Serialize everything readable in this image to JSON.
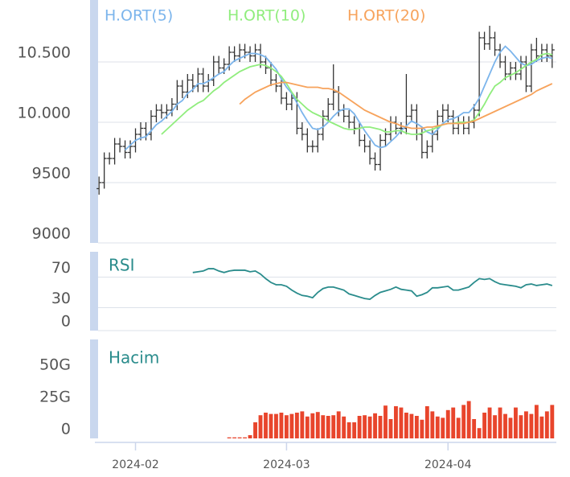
{
  "chart_data": [
    {
      "type": "ohlc",
      "color": "#333333",
      "ylim": [
        9000,
        11000
      ],
      "grid": true,
      "yticks": [
        9000,
        9500,
        {
          "value": 10000,
          "label": "10.000"
        },
        {
          "value": 10500,
          "label": "10.500"
        }
      ],
      "open": [
        9450,
        9500,
        9700,
        9700,
        9820,
        9800,
        9750,
        9800,
        9900,
        9950,
        9900,
        10050,
        10100,
        10080,
        10100,
        10150,
        10300,
        10250,
        10350,
        10300,
        10400,
        10300,
        10350,
        10500,
        10450,
        10480,
        10580,
        10550,
        10600,
        10580,
        10550,
        10600,
        10500,
        10450,
        10350,
        10300,
        10200,
        10150,
        10200,
        9950,
        9900,
        9800,
        9800,
        9900,
        10050,
        10150,
        10250,
        10100,
        10050,
        10000,
        9950,
        9850,
        9800,
        9700,
        9650,
        9850,
        9900,
        10000,
        9950,
        9950,
        10050,
        10100,
        9900,
        9750,
        9800,
        9900,
        10050,
        10100,
        10050,
        9950,
        10000,
        9950,
        10000,
        10100,
        10700,
        10650,
        10700,
        10600,
        10500,
        10400,
        10450,
        10400,
        10500,
        10300,
        10600,
        10550,
        10600,
        10550
      ],
      "high": [
        9550,
        9750,
        9750,
        9870,
        9870,
        9850,
        9850,
        9950,
        10000,
        10000,
        10100,
        10150,
        10150,
        10150,
        10200,
        10350,
        10350,
        10400,
        10400,
        10450,
        10450,
        10400,
        10550,
        10550,
        10530,
        10630,
        10630,
        10650,
        10650,
        10630,
        10650,
        10650,
        10550,
        10500,
        10400,
        10350,
        10250,
        10250,
        10250,
        10000,
        9950,
        9850,
        9950,
        10100,
        10200,
        10480,
        10300,
        10150,
        10100,
        10050,
        10000,
        9900,
        9850,
        9750,
        9900,
        9950,
        10050,
        10050,
        10000,
        10400,
        10150,
        10150,
        9950,
        9850,
        9950,
        10100,
        10150,
        10150,
        10100,
        10050,
        10050,
        10050,
        10150,
        10750,
        10750,
        10800,
        10750,
        10650,
        10550,
        10500,
        10500,
        10550,
        10550,
        10650,
        10700,
        10650,
        10650,
        10650
      ],
      "low": [
        9400,
        9450,
        9650,
        9650,
        9750,
        9700,
        9700,
        9750,
        9850,
        9850,
        9850,
        10000,
        10030,
        10030,
        10050,
        10100,
        10200,
        10200,
        10250,
        10250,
        10250,
        10250,
        10300,
        10400,
        10400,
        10430,
        10500,
        10500,
        10530,
        10500,
        10500,
        10450,
        10400,
        10300,
        10250,
        10150,
        10100,
        10100,
        9900,
        9850,
        9750,
        9750,
        9750,
        9850,
        10000,
        10100,
        10050,
        10000,
        9950,
        9900,
        9800,
        9750,
        9650,
        9600,
        9600,
        9800,
        9850,
        9900,
        9900,
        9900,
        10000,
        9850,
        9700,
        9700,
        9750,
        9850,
        10000,
        10000,
        9900,
        9900,
        9900,
        9900,
        9950,
        10050,
        10600,
        10600,
        10550,
        10450,
        10350,
        10350,
        10350,
        10350,
        10250,
        10250,
        10500,
        10500,
        10500,
        10450
      ],
      "close": [
        9500,
        9700,
        9700,
        9820,
        9800,
        9750,
        9800,
        9900,
        9950,
        9900,
        10050,
        10100,
        10080,
        10100,
        10150,
        10300,
        10250,
        10350,
        10300,
        10400,
        10300,
        10350,
        10500,
        10450,
        10480,
        10580,
        10550,
        10600,
        10580,
        10550,
        10600,
        10500,
        10450,
        10350,
        10300,
        10200,
        10150,
        10200,
        9950,
        9900,
        9800,
        9800,
        9900,
        10050,
        10150,
        10250,
        10100,
        10050,
        10000,
        9950,
        9850,
        9800,
        9700,
        9650,
        9850,
        9900,
        10000,
        9950,
        9950,
        10050,
        10100,
        9900,
        9750,
        9800,
        9900,
        10050,
        10100,
        10050,
        9950,
        10000,
        9950,
        10000,
        10100,
        10700,
        10650,
        10700,
        10600,
        10500,
        10400,
        10450,
        10400,
        10500,
        10300,
        10600,
        10550,
        10600,
        10550,
        10600
      ],
      "series": [
        {
          "name": "H.ORT(5)",
          "color": "#7cb5ec",
          "values": [
            null,
            null,
            null,
            null,
            null,
            9770,
            9810,
            9850,
            9870,
            9880,
            9930,
            9980,
            10010,
            10050,
            10090,
            10150,
            10180,
            10240,
            10270,
            10320,
            10320,
            10340,
            10370,
            10400,
            10420,
            10470,
            10510,
            10530,
            10550,
            10570,
            10570,
            10560,
            10540,
            10490,
            10440,
            10360,
            10290,
            10240,
            10160,
            10080,
            10010,
            9950,
            9940,
            9960,
            10000,
            10050,
            10090,
            10110,
            10110,
            10070,
            10000,
            9930,
            9870,
            9810,
            9790,
            9800,
            9840,
            9880,
            9930,
            9970,
            10010,
            9990,
            9960,
            9920,
            9900,
            9940,
            9990,
            10020,
            10030,
            10050,
            10080,
            10080,
            10130,
            10200,
            10300,
            10400,
            10500,
            10580,
            10630,
            10590,
            10540,
            10490,
            10470,
            10480,
            10510,
            10530,
            10540,
            10530
          ]
        },
        {
          "name": "H.ORT(10)",
          "color": "#90ed7d",
          "values": [
            null,
            null,
            null,
            null,
            null,
            null,
            null,
            null,
            null,
            null,
            null,
            null,
            9900,
            9940,
            9980,
            10020,
            10060,
            10100,
            10130,
            10160,
            10180,
            10220,
            10260,
            10290,
            10330,
            10360,
            10390,
            10420,
            10440,
            10460,
            10470,
            10480,
            10470,
            10450,
            10420,
            10380,
            10320,
            10250,
            10190,
            10150,
            10110,
            10080,
            10060,
            10040,
            10010,
            9990,
            9970,
            9950,
            9940,
            9940,
            9950,
            9960,
            9960,
            9950,
            9940,
            9920,
            9920,
            9930,
            9930,
            9910,
            9900,
            9900,
            9910,
            9930,
            9940,
            9960,
            9980,
            9990,
            9990,
            10000,
            10000,
            10000,
            10020,
            10080,
            10150,
            10230,
            10300,
            10330,
            10370,
            10390,
            10410,
            10440,
            10470,
            10500,
            10520,
            10560,
            10570,
            10560
          ]
        },
        {
          "name": "H.ORT(20)",
          "color": "#f7a35c",
          "values": [
            null,
            null,
            null,
            null,
            null,
            null,
            null,
            null,
            null,
            null,
            null,
            null,
            null,
            null,
            null,
            null,
            null,
            null,
            null,
            null,
            null,
            null,
            null,
            null,
            null,
            null,
            null,
            10150,
            10190,
            10220,
            10250,
            10270,
            10290,
            10310,
            10320,
            10330,
            10330,
            10320,
            10310,
            10300,
            10290,
            10290,
            10290,
            10280,
            10280,
            10270,
            10250,
            10220,
            10190,
            10160,
            10130,
            10100,
            10080,
            10060,
            10040,
            10020,
            10000,
            9990,
            9970,
            9960,
            9950,
            9950,
            9950,
            9960,
            9960,
            9970,
            9980,
            9990,
            9990,
            9990,
            9990,
            10000,
            10010,
            10030,
            10050,
            10070,
            10090,
            10110,
            10130,
            10150,
            10170,
            10190,
            10210,
            10230,
            10260,
            10280,
            10300,
            10320
          ]
        }
      ]
    },
    {
      "type": "line",
      "title": "RSI",
      "color": "#2a8c8c",
      "ylim": [
        0,
        100
      ],
      "yticks": [
        0,
        30,
        70
      ],
      "grid": true,
      "values": [
        null,
        null,
        null,
        null,
        null,
        null,
        null,
        null,
        null,
        null,
        null,
        null,
        null,
        null,
        null,
        null,
        null,
        null,
        76,
        77,
        78,
        81,
        81,
        78,
        76,
        78,
        79,
        79,
        79,
        77,
        78,
        74,
        68,
        63,
        60,
        60,
        58,
        53,
        49,
        46,
        45,
        43,
        50,
        55,
        57,
        57,
        55,
        53,
        48,
        46,
        44,
        42,
        41,
        46,
        50,
        52,
        54,
        57,
        54,
        53,
        52,
        45,
        47,
        50,
        56,
        56,
        57,
        58,
        53,
        53,
        55,
        57,
        63,
        68,
        67,
        68,
        64,
        61,
        60,
        59,
        58,
        56,
        60,
        61,
        59,
        60,
        61,
        59
      ]
    },
    {
      "type": "bar",
      "title": "Hacim",
      "color": "#e8452c",
      "ylim": [
        0,
        75000000000
      ],
      "grid": false,
      "yticks": [
        0,
        {
          "value": 25000000000,
          "label": "25G"
        },
        {
          "value": 50000000000,
          "label": "50G"
        }
      ],
      "xlim": [
        -0.8,
        87.8
      ],
      "xticks": [
        {
          "value": 7,
          "label": "2024-02"
        },
        {
          "value": 36,
          "label": "2024-03"
        },
        {
          "value": 67,
          "label": "2024-04"
        }
      ],
      "values": [
        null,
        null,
        null,
        null,
        null,
        null,
        null,
        null,
        null,
        null,
        null,
        null,
        null,
        null,
        null,
        null,
        null,
        null,
        null,
        null,
        null,
        null,
        null,
        null,
        null,
        800000000.0,
        800000000.0,
        800000000.0,
        800000000.0,
        2500000000.0,
        12500000000.0,
        18000000000.0,
        20000000000.0,
        19000000000.0,
        19000000000.0,
        20000000000.0,
        18000000000.0,
        19000000000.0,
        20000000000.0,
        21000000000.0,
        17000000000.0,
        19500000000.0,
        20500000000.0,
        18000000000.0,
        17500000000.0,
        18000000000.0,
        21000000000.0,
        17000000000.0,
        12500000000.0,
        12500000000.0,
        17500000000.0,
        18000000000.0,
        17000000000.0,
        19500000000.0,
        17500000000.0,
        25500000000.0,
        15000000000.0,
        25000000000.0,
        24000000000.0,
        20000000000.0,
        19000000000.0,
        17500000000.0,
        14500000000.0,
        25000000000.0,
        21000000000.0,
        17000000000.0,
        16000000000.0,
        22000000000.0,
        24000000000.0,
        16000000000.0,
        26000000000.0,
        29000000000.0,
        15000000000.0,
        8000000000.0,
        20000000000.0,
        24000000000.0,
        18000000000.0,
        24000000000.0,
        19000000000.0,
        16000000000.0,
        24000000000.0,
        18000000000.0,
        21000000000.0,
        19000000000.0,
        26000000000.0,
        17000000000.0,
        21000000000.0,
        26000000000.0
      ]
    }
  ]
}
